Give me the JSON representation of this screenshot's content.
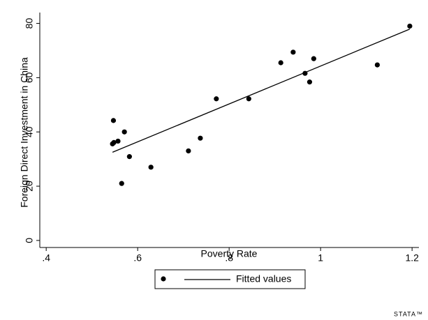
{
  "chart_data": {
    "type": "scatter",
    "x_label": "Poverty Rate",
    "y_label": "Foreign Direct Investment in China",
    "xlim": [
      0.386,
      1.215
    ],
    "ylim": [
      -2.6,
      84
    ],
    "xticks": [
      {
        "value": 0.4,
        "label": ".4"
      },
      {
        "value": 0.6,
        "label": ".6"
      },
      {
        "value": 0.8,
        "label": ".8"
      },
      1,
      1.2
    ],
    "yticks": [
      0,
      20,
      40,
      60,
      80
    ],
    "series": [
      {
        "type": "scatter",
        "color": "#000000",
        "x": [
          0.547,
          0.545,
          0.548,
          0.557,
          0.571,
          0.565,
          0.582,
          0.629,
          0.711,
          0.737,
          0.772,
          0.843,
          0.913,
          0.94,
          0.966,
          0.985,
          0.976,
          1.124,
          1.195
        ],
        "values": [
          44.2,
          35.6,
          36.1,
          36.6,
          40,
          21,
          30.9,
          27,
          33,
          37.7,
          52.2,
          52.2,
          65.5,
          69.4,
          61.6,
          67,
          58.4,
          64.7,
          79
        ]
      },
      {
        "type": "line",
        "name": "Fitted values",
        "color": "#000000",
        "x": [
          0.545,
          1.195
        ],
        "values": [
          32.5,
          77.9
        ]
      }
    ],
    "logo": "STATA™"
  }
}
